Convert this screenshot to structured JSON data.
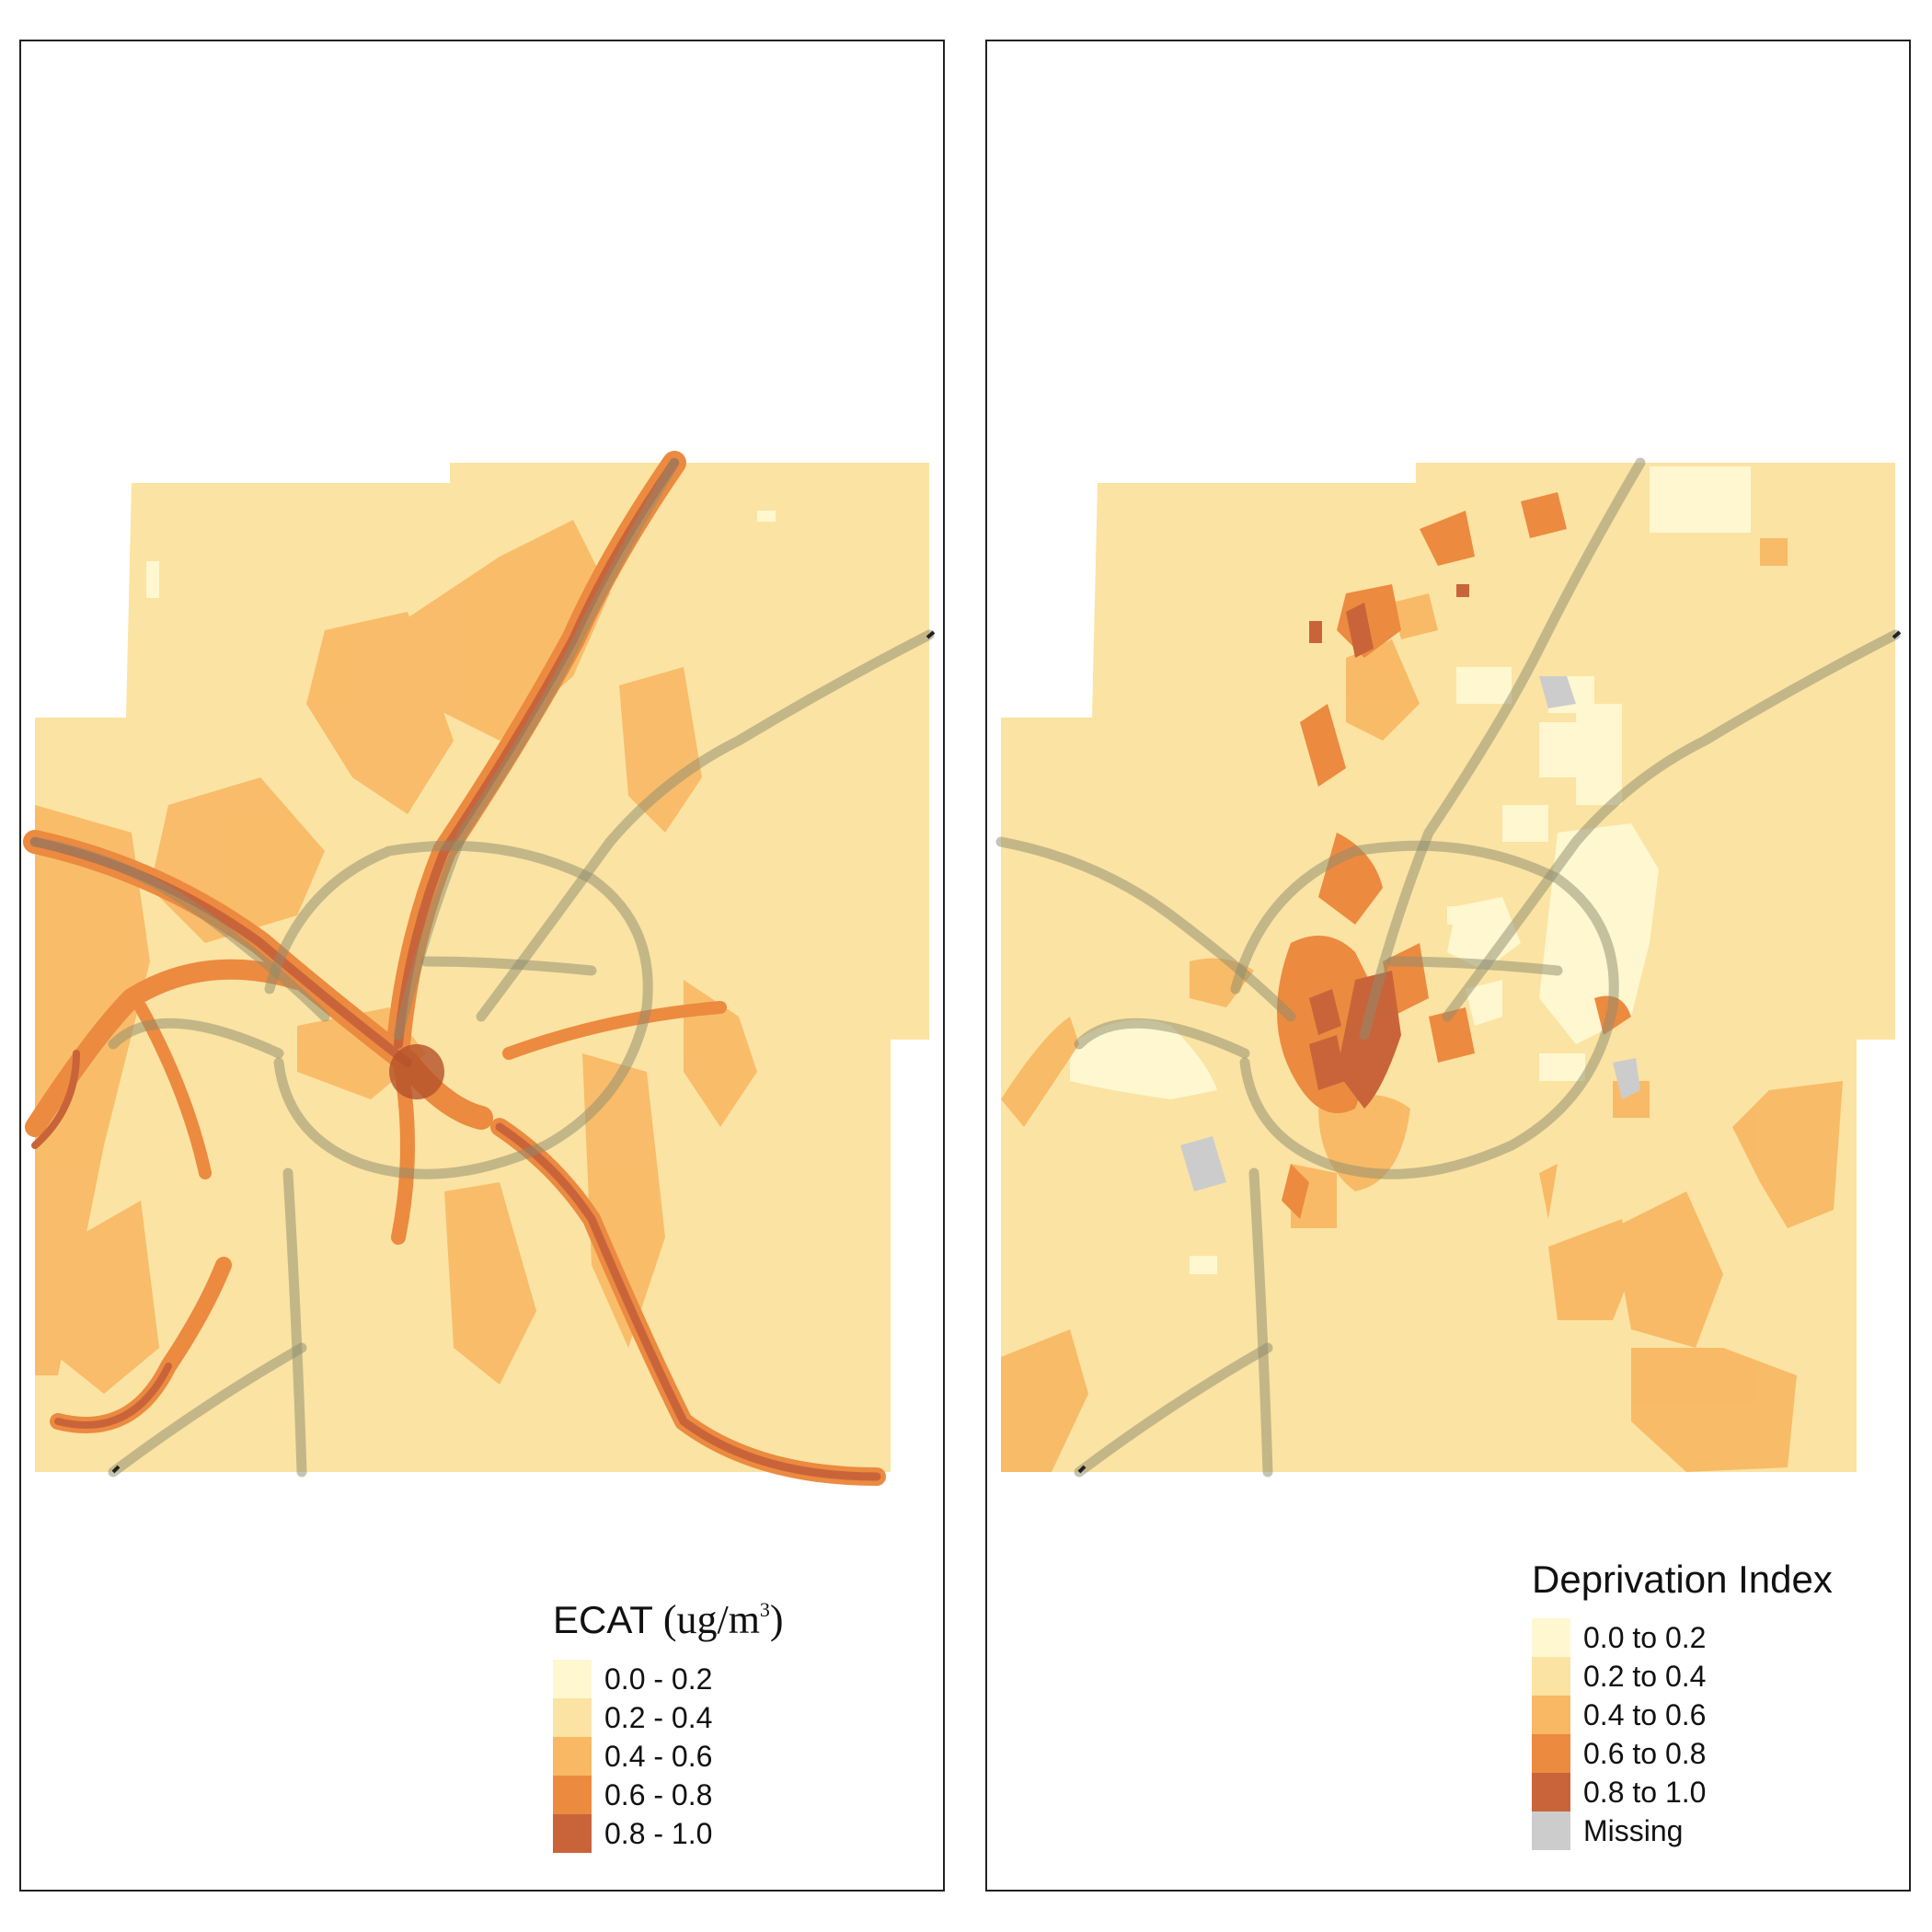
{
  "panels": [
    {
      "id": "ecat",
      "legend": {
        "title_main": "ECAT",
        "title_unit_pre": "(ug/m",
        "title_unit_sup": "3",
        "title_unit_post": ")",
        "items": [
          {
            "label": "0.0 - 0.2",
            "color": "#FFF7CF"
          },
          {
            "label": "0.2 - 0.4",
            "color": "#FBE3A3"
          },
          {
            "label": "0.4 - 0.6",
            "color": "#F8B864"
          },
          {
            "label": "0.6 - 0.8",
            "color": "#EC8A40"
          },
          {
            "label": "0.8 - 1.0",
            "color": "#C9643A"
          }
        ]
      }
    },
    {
      "id": "deprivation",
      "legend": {
        "title": "Deprivation Index",
        "items": [
          {
            "label": "0.0 to 0.2",
            "color": "#FFF7CF"
          },
          {
            "label": "0.2 to 0.4",
            "color": "#FBE3A3"
          },
          {
            "label": "0.4 to 0.6",
            "color": "#F8B864"
          },
          {
            "label": "0.6 to 0.8",
            "color": "#EC8A40"
          },
          {
            "label": "0.8 to 1.0",
            "color": "#C9643A"
          },
          {
            "label": "Missing",
            "color": "#CCCCCC"
          }
        ]
      }
    }
  ]
}
